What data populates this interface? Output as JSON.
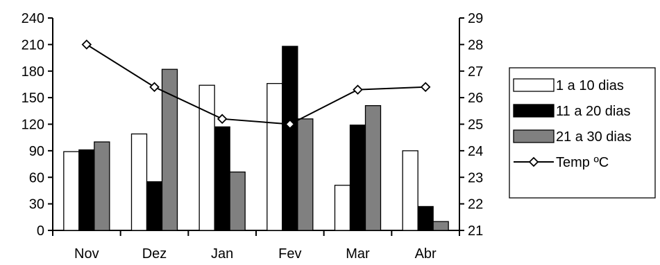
{
  "chart_data": {
    "type": "bar",
    "categories": [
      "Nov",
      "Dez",
      "Jan",
      "Fev",
      "Mar",
      "Abr"
    ],
    "series": [
      {
        "name": "1 a 10 dias",
        "type": "bar",
        "axis": "left",
        "color": "#ffffff",
        "values": [
          89,
          109,
          164,
          166,
          51,
          90
        ]
      },
      {
        "name": "11 a 20 dias",
        "type": "bar",
        "axis": "left",
        "color": "#000000",
        "values": [
          91,
          55,
          117,
          208,
          119,
          27
        ]
      },
      {
        "name": "21 a 30 dias",
        "type": "bar",
        "axis": "left",
        "color": "#808080",
        "values": [
          100,
          182,
          66,
          126,
          141,
          10
        ]
      },
      {
        "name": "Temp ºC",
        "type": "line",
        "axis": "right",
        "marker": "diamond",
        "values": [
          28.0,
          26.4,
          25.2,
          25.0,
          26.3,
          26.4
        ]
      }
    ],
    "y_left": {
      "min": 0,
      "max": 240,
      "ticks": [
        "0",
        "30",
        "60",
        "90",
        "120",
        "150",
        "180",
        "210",
        "240"
      ]
    },
    "y_right": {
      "min": 21,
      "max": 29,
      "ticks": [
        "21",
        "22",
        "23",
        "24",
        "25",
        "26",
        "27",
        "28",
        "29"
      ]
    },
    "grid": false,
    "legend_position": "right"
  }
}
